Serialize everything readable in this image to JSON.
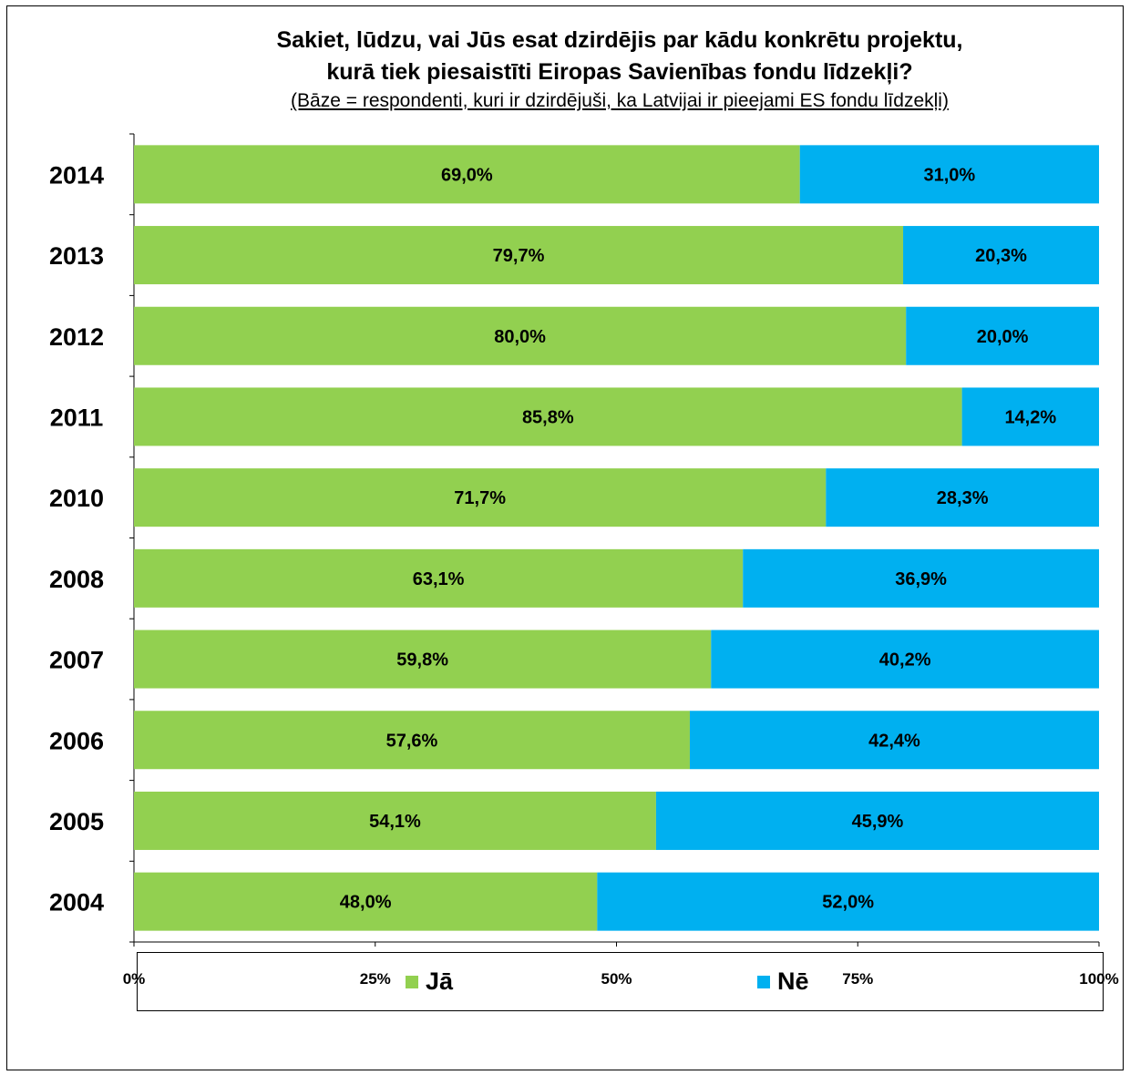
{
  "colors": {
    "ja": "#92D050",
    "ne": "#00B0F0"
  },
  "chart_data": {
    "type": "bar",
    "orientation": "horizontal",
    "stacked": true,
    "title_line1": "Sakiet, lūdzu, vai Jūs esat dzirdējis par kādu konkrētu projektu,",
    "title_line2": "kurā tiek piesaistīti Eiropas Savienības fondu līdzekļi?",
    "subtitle": "(Bāze = respondenti, kuri ir dzirdējuši, ka Latvijai ir pieejami ES fondu līdzekļi)",
    "categories": [
      "2014",
      "2013",
      "2012",
      "2011",
      "2010",
      "2008",
      "2007",
      "2006",
      "2005",
      "2004"
    ],
    "series": [
      {
        "name": "Jā",
        "values": [
          69.0,
          79.7,
          80.0,
          85.8,
          71.7,
          63.1,
          59.8,
          57.6,
          54.1,
          48.0
        ],
        "labels": [
          "69,0%",
          "79,7%",
          "80,0%",
          "85,8%",
          "71,7%",
          "63,1%",
          "59,8%",
          "57,6%",
          "54,1%",
          "48,0%"
        ]
      },
      {
        "name": "Nē",
        "values": [
          31.0,
          20.3,
          20.0,
          14.2,
          28.3,
          36.9,
          40.2,
          42.4,
          45.9,
          52.0
        ],
        "labels": [
          "31,0%",
          "20,3%",
          "20,0%",
          "14,2%",
          "28,3%",
          "36,9%",
          "40,2%",
          "42,4%",
          "45,9%",
          "52,0%"
        ]
      }
    ],
    "xlim": [
      0,
      100
    ],
    "x_ticks": [
      "0%",
      "25%",
      "50%",
      "75%",
      "100%"
    ],
    "legend_position": "bottom",
    "grid": false
  }
}
